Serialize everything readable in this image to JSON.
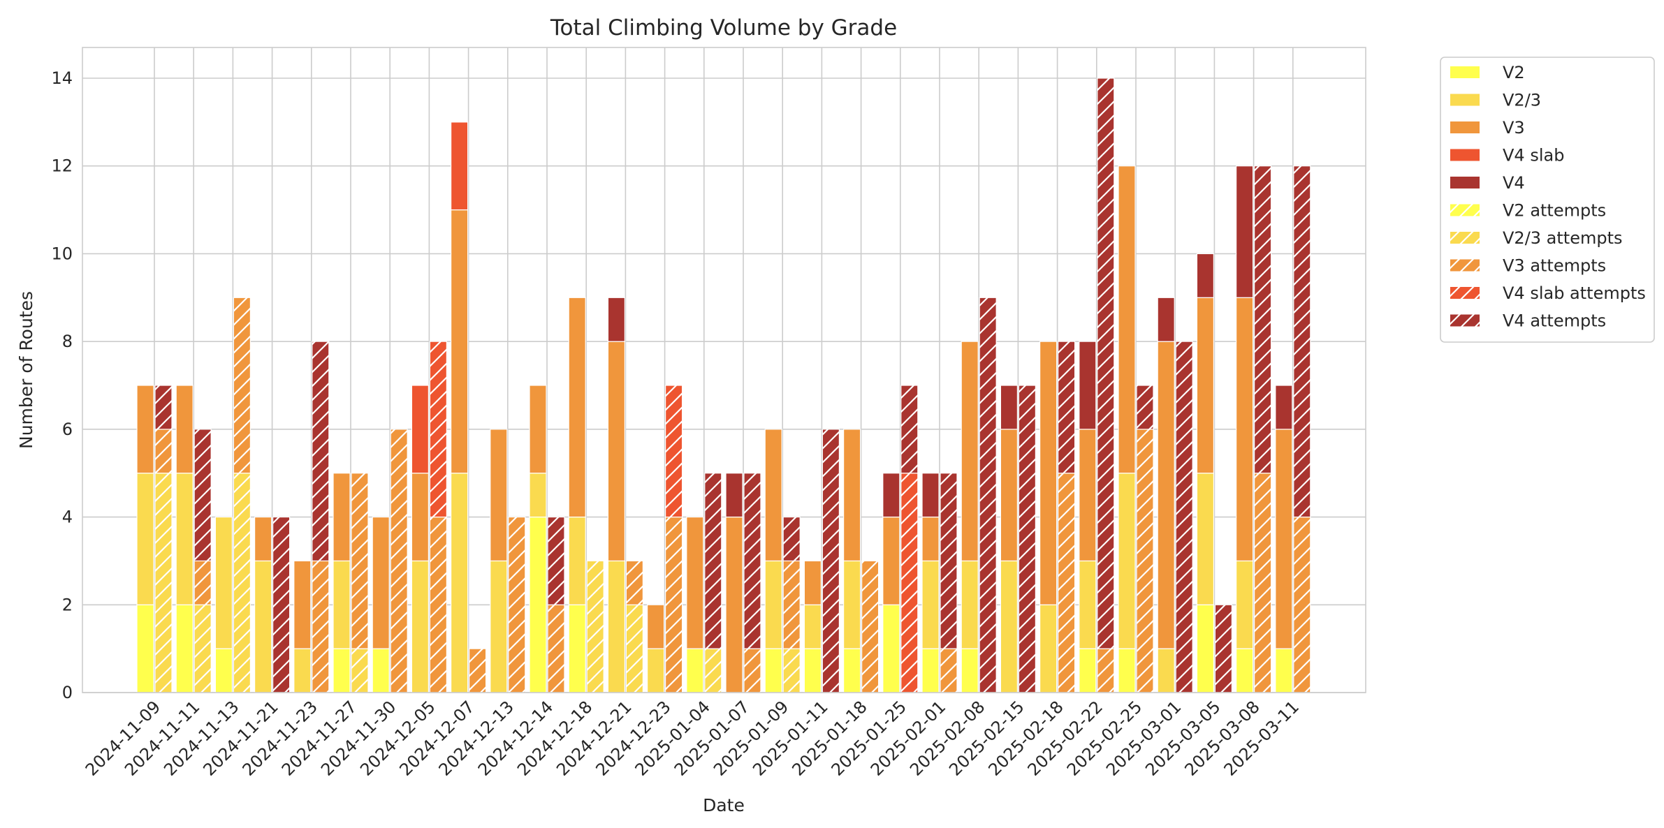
{
  "chart_data": {
    "type": "bar",
    "title": "Total Climbing Volume by Grade",
    "xlabel": "Date",
    "ylabel": "Number of Routes",
    "ylim": [
      0,
      14.7
    ],
    "yticks": [
      0,
      2,
      4,
      6,
      8,
      10,
      12,
      14
    ],
    "grid": true,
    "legend_position": "outside top-right",
    "categories": [
      "2024-11-09",
      "2024-11-11",
      "2024-11-13",
      "2024-11-21",
      "2024-11-23",
      "2024-11-27",
      "2024-11-30",
      "2024-12-05",
      "2024-12-07",
      "2024-12-13",
      "2024-12-14",
      "2024-12-18",
      "2024-12-21",
      "2024-12-23",
      "2025-01-04",
      "2025-01-07",
      "2025-01-09",
      "2025-01-11",
      "2025-01-18",
      "2025-01-25",
      "2025-02-01",
      "2025-02-08",
      "2025-02-15",
      "2025-02-18",
      "2025-02-22",
      "2025-02-25",
      "2025-03-01",
      "2025-03-05",
      "2025-03-08",
      "2025-03-11"
    ],
    "series": [
      {
        "name": "V2",
        "group": "sends",
        "color": "#FFFF4D",
        "hatch": false,
        "values": [
          2,
          2,
          1,
          0,
          0,
          1,
          1,
          0,
          0,
          0,
          4,
          2,
          0,
          0,
          1,
          0,
          1,
          1,
          1,
          2,
          1,
          1,
          0,
          0,
          1,
          1,
          0,
          2,
          1,
          1
        ]
      },
      {
        "name": "V2/3",
        "group": "sends",
        "color": "#FADA4F",
        "hatch": false,
        "values": [
          3,
          3,
          3,
          3,
          1,
          2,
          0,
          3,
          5,
          3,
          1,
          2,
          3,
          1,
          0,
          0,
          2,
          1,
          2,
          0,
          2,
          2,
          3,
          2,
          2,
          4,
          1,
          3,
          2,
          0
        ]
      },
      {
        "name": "V3",
        "group": "sends",
        "color": "#F0963C",
        "hatch": false,
        "values": [
          2,
          2,
          0,
          1,
          2,
          2,
          3,
          2,
          6,
          3,
          2,
          5,
          5,
          1,
          3,
          4,
          3,
          1,
          3,
          2,
          1,
          5,
          3,
          6,
          3,
          7,
          7,
          4,
          6,
          5
        ]
      },
      {
        "name": "V4 slab",
        "group": "sends",
        "color": "#EE5530",
        "hatch": false,
        "values": [
          0,
          0,
          0,
          0,
          0,
          0,
          0,
          2,
          2,
          0,
          0,
          0,
          0,
          0,
          0,
          0,
          0,
          0,
          0,
          0,
          0,
          0,
          0,
          0,
          0,
          0,
          0,
          0,
          0,
          0
        ]
      },
      {
        "name": "V4",
        "group": "sends",
        "color": "#A9342F",
        "hatch": false,
        "values": [
          0,
          0,
          0,
          0,
          0,
          0,
          0,
          0,
          0,
          0,
          0,
          0,
          1,
          0,
          0,
          1,
          0,
          0,
          0,
          1,
          1,
          0,
          1,
          0,
          2,
          0,
          1,
          1,
          3,
          1
        ]
      },
      {
        "name": "V2 attempts",
        "group": "attempts",
        "color": "#FFFF4D",
        "hatch": true,
        "values": [
          0,
          0,
          0,
          0,
          0,
          0,
          0,
          0,
          0,
          0,
          0,
          0,
          0,
          0,
          0,
          0,
          0,
          0,
          0,
          0,
          0,
          0,
          0,
          0,
          0,
          0,
          0,
          0,
          0,
          0
        ]
      },
      {
        "name": "V2/3 attempts",
        "group": "attempts",
        "color": "#FADA4F",
        "hatch": true,
        "values": [
          5,
          2,
          5,
          0,
          0,
          1,
          0,
          0,
          0,
          0,
          0,
          3,
          2,
          0,
          1,
          0,
          1,
          0,
          0,
          0,
          0,
          0,
          0,
          0,
          0,
          0,
          0,
          0,
          0,
          0
        ]
      },
      {
        "name": "V3 attempts",
        "group": "attempts",
        "color": "#F0963C",
        "hatch": true,
        "values": [
          1,
          1,
          4,
          0,
          3,
          4,
          6,
          4,
          1,
          4,
          2,
          0,
          1,
          4,
          0,
          1,
          2,
          0,
          3,
          0,
          1,
          0,
          0,
          5,
          1,
          6,
          0,
          0,
          5,
          4
        ]
      },
      {
        "name": "V4 slab attempts",
        "group": "attempts",
        "color": "#EE5530",
        "hatch": true,
        "values": [
          0,
          0,
          0,
          0,
          0,
          0,
          0,
          4,
          0,
          0,
          0,
          0,
          0,
          3,
          0,
          0,
          0,
          0,
          0,
          5,
          0,
          0,
          0,
          0,
          0,
          0,
          0,
          0,
          0,
          0
        ]
      },
      {
        "name": "V4 attempts",
        "group": "attempts",
        "color": "#A9342F",
        "hatch": true,
        "values": [
          1,
          3,
          0,
          4,
          5,
          0,
          0,
          0,
          0,
          0,
          2,
          0,
          0,
          0,
          4,
          4,
          1,
          6,
          0,
          2,
          4,
          9,
          7,
          3,
          13,
          1,
          8,
          2,
          7,
          8
        ]
      }
    ]
  }
}
